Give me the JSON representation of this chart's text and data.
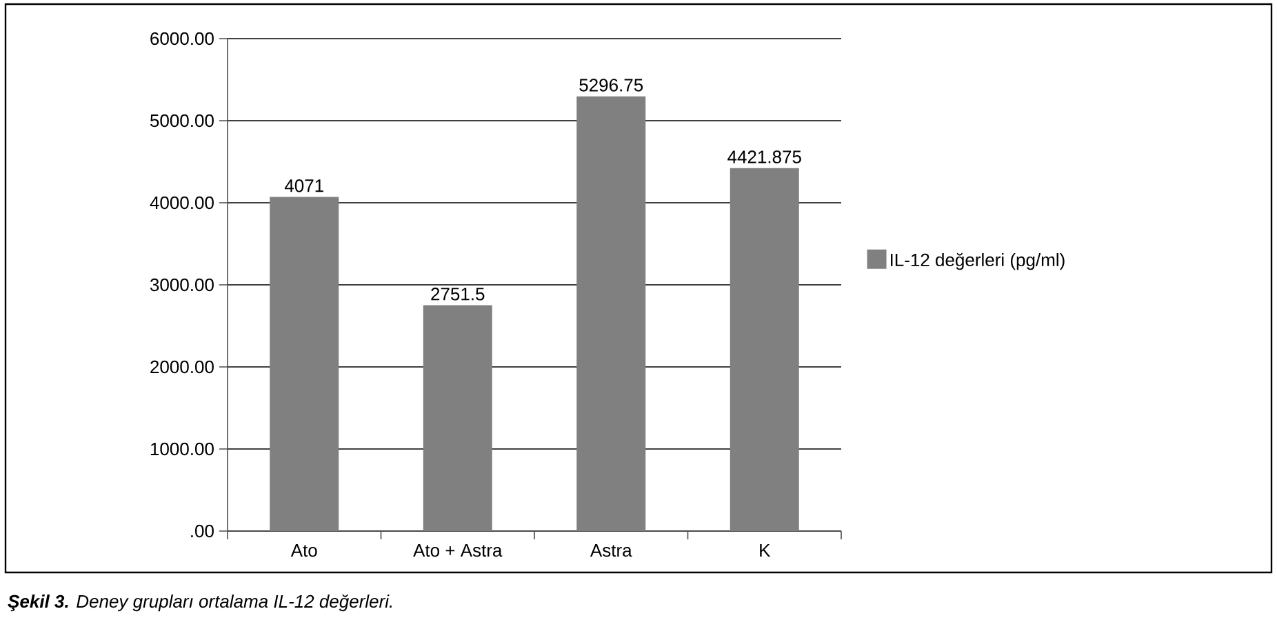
{
  "chart_data": {
    "type": "bar",
    "categories": [
      "Ato",
      "Ato + Astra",
      "Astra",
      "K"
    ],
    "series": [
      {
        "name": "IL-12 değerleri (pg/ml)",
        "color": "#808080",
        "values": [
          4071,
          2751.5,
          5296.75,
          4421.875
        ],
        "value_labels": [
          "4071",
          "2751.5",
          "5296.75",
          "4421.875"
        ]
      }
    ],
    "ylim": [
      0,
      6000
    ],
    "yticks": [
      {
        "value": 0,
        "label": ".00"
      },
      {
        "value": 1000,
        "label": "1000.00"
      },
      {
        "value": 2000,
        "label": "2000.00"
      },
      {
        "value": 3000,
        "label": "3000.00"
      },
      {
        "value": 4000,
        "label": "4000.00"
      },
      {
        "value": 5000,
        "label": "5000.00"
      },
      {
        "value": 6000,
        "label": "6000.00"
      }
    ],
    "grid": "y",
    "legend": "right",
    "annotations": [
      "**Şekil 3.** Deney grupları ortalama IL-12 değerleri."
    ]
  }
}
